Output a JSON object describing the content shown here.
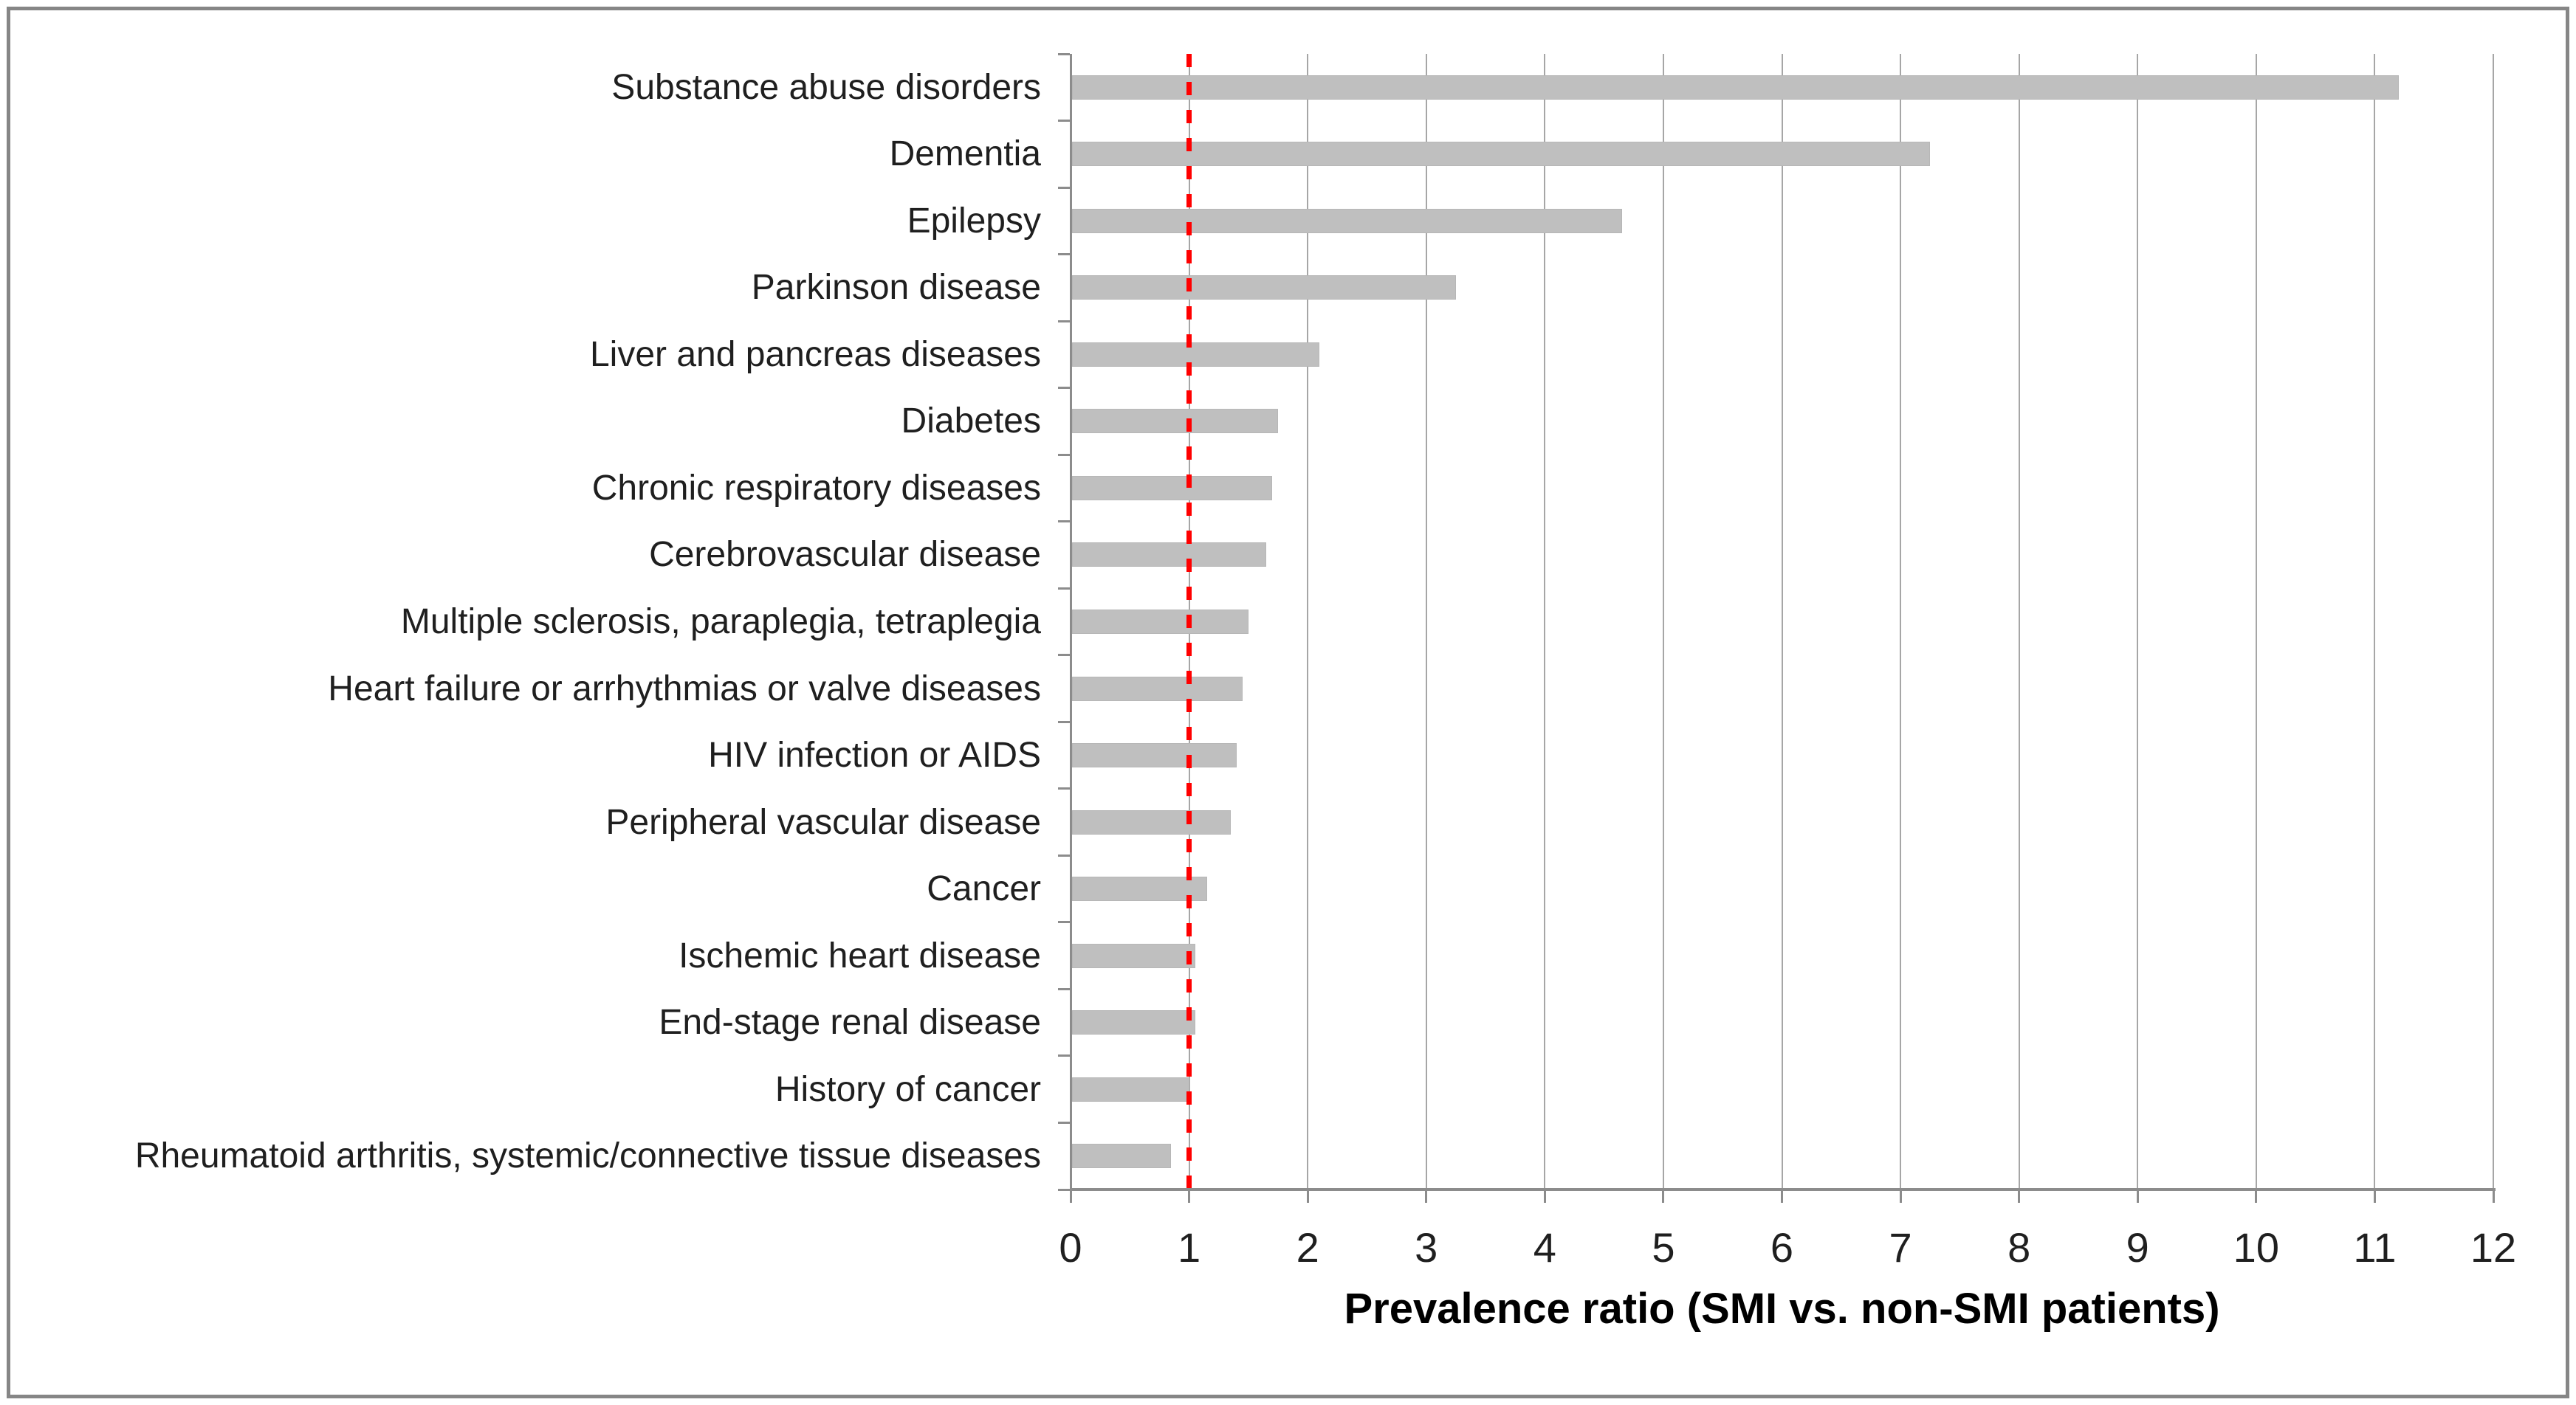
{
  "chart_data": {
    "type": "bar",
    "orientation": "horizontal",
    "title": "",
    "xlabel": "Prevalence ratio (SMI vs. non-SMI patients)",
    "ylabel": "",
    "xlim": [
      0,
      12
    ],
    "xticks": [
      0,
      1,
      2,
      3,
      4,
      5,
      6,
      7,
      8,
      9,
      10,
      11,
      12
    ],
    "grid": true,
    "legend": "none",
    "reference_line": {
      "x": 1,
      "style": "dashed",
      "color": "#FF0000"
    },
    "bar_color": "#BFBFBF",
    "categories": [
      "Substance abuse disorders",
      "Dementia",
      "Epilepsy",
      "Parkinson disease",
      "Liver and pancreas diseases",
      "Diabetes",
      "Chronic respiratory diseases",
      "Cerebrovascular disease",
      "Multiple sclerosis, paraplegia, tetraplegia",
      "Heart failure or arrhythmias or valve diseases",
      "HIV infection or AIDS",
      "Peripheral vascular disease",
      "Cancer",
      "Ischemic heart disease",
      "End-stage renal disease",
      "History of cancer",
      "Rheumatoid arthritis, systemic/connective tissue diseases"
    ],
    "values": [
      11.2,
      7.25,
      4.65,
      3.25,
      2.1,
      1.75,
      1.7,
      1.65,
      1.5,
      1.45,
      1.4,
      1.35,
      1.15,
      1.05,
      1.05,
      1.0,
      0.85
    ]
  },
  "colors": {
    "bar": "#BFBFBF",
    "gridline": "#A6A6A6",
    "axis": "#8C8C8C",
    "reference": "#FF0000",
    "text": "#1F1F1F",
    "frame_border": "#868686",
    "background": "#FFFFFF"
  }
}
